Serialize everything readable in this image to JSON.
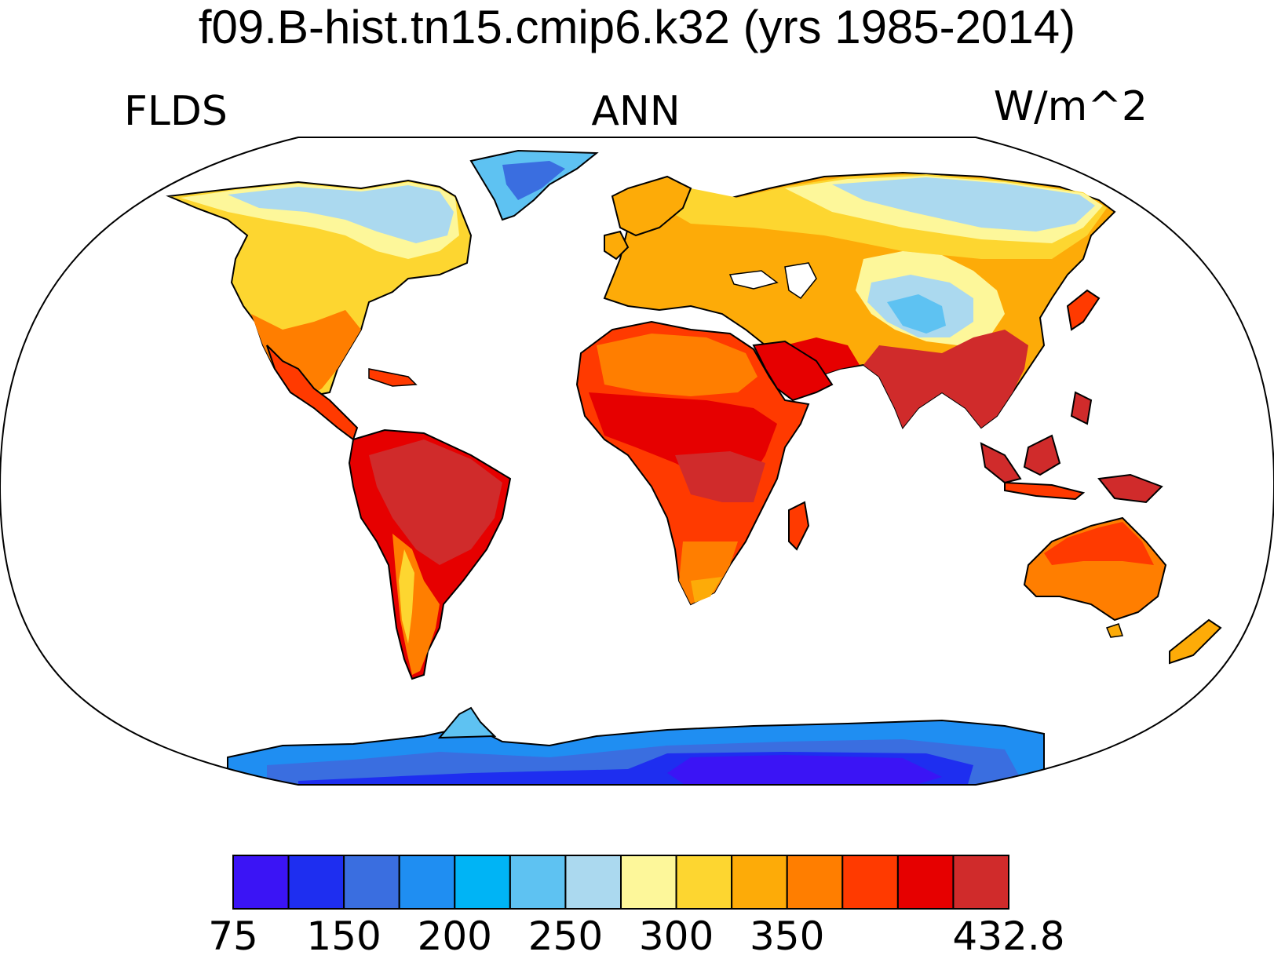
{
  "header": {
    "title": "f09.B-hist.tn15.cmip6.k32 (yrs 1985-2014)",
    "variable": "FLDS",
    "season": "ANN",
    "units": "W/m^2"
  },
  "colorbar": {
    "colors": [
      "#3b14f5",
      "#1e2ef0",
      "#3a6ee0",
      "#1f8ef2",
      "#00b4f5",
      "#5ec2f2",
      "#abd9ef",
      "#fdf79a",
      "#fdd630",
      "#fdab08",
      "#ff7e00",
      "#ff3a00",
      "#e60000",
      "#d02b2b"
    ],
    "labels": [
      "75",
      "150",
      "200",
      "250",
      "300",
      "350",
      "432.8"
    ],
    "label_after_box": [
      0,
      2,
      4,
      6,
      8,
      10,
      14
    ]
  }
}
